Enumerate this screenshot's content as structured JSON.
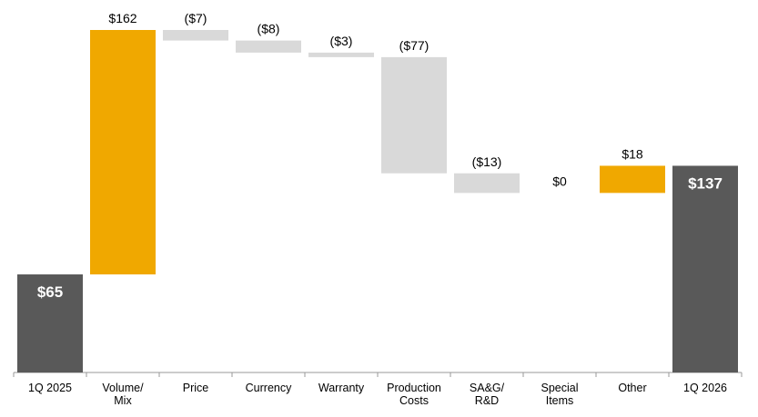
{
  "chart_data": {
    "type": "waterfall",
    "categories": [
      "1Q 2025",
      "Volume/\nMix",
      "Price",
      "Currency",
      "Warranty",
      "Production\nCosts",
      "SA&G/\nR&D",
      "Special\nItems",
      "Other",
      "1Q 2026"
    ],
    "values": [
      65,
      162,
      -7,
      -8,
      -3,
      -77,
      -13,
      0,
      18,
      137
    ],
    "value_labels": [
      "$65",
      "$162",
      "($7)",
      "($8)",
      "($3)",
      "($77)",
      "($13)",
      "$0",
      "$18",
      "$137"
    ],
    "colors": [
      "#595959",
      "#f0a800",
      "#d9d9d9",
      "#d9d9d9",
      "#d9d9d9",
      "#d9d9d9",
      "#d9d9d9",
      "#d9d9d9",
      "#f0a800",
      "#595959"
    ]
  }
}
